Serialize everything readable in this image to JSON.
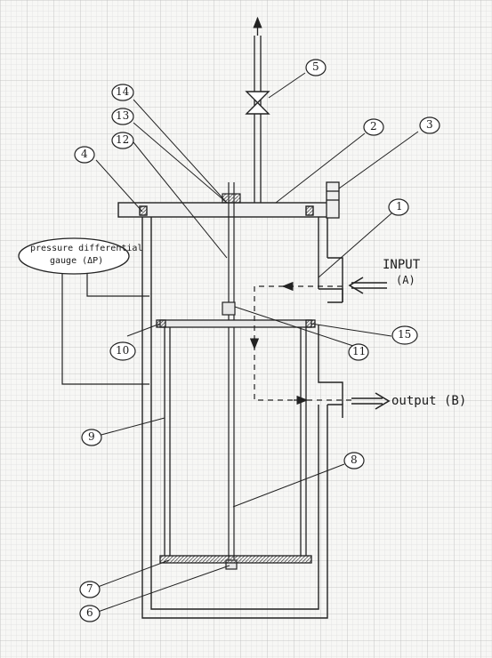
{
  "diagram": {
    "gauge_label_line1": "pressure differential",
    "gauge_label_line2": "gauge (ΔP)",
    "input_label": "INPUT",
    "input_sub": "(A)",
    "output_label": "output (B)",
    "callouts": [
      "1",
      "2",
      "3",
      "4",
      "5",
      "6",
      "7",
      "8",
      "9",
      "10",
      "11",
      "12",
      "13",
      "14",
      "15"
    ]
  }
}
